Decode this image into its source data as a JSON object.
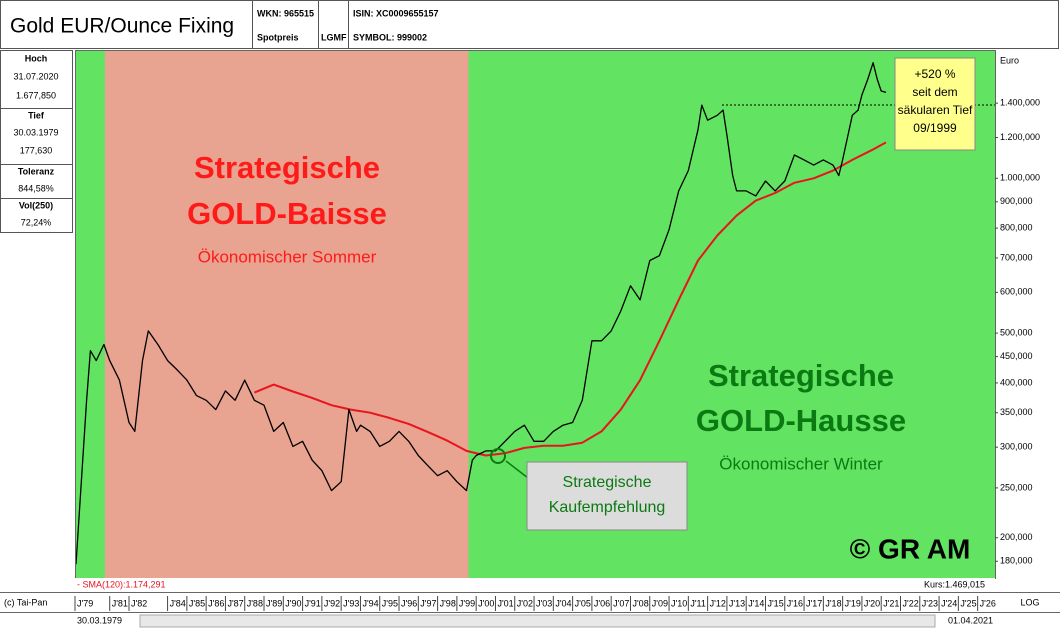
{
  "header": {
    "title": "Gold EUR/Ounce Fixing",
    "wkn": "WKN: 965515",
    "spot": "Spotpreis",
    "lgmf": "LGMF",
    "isin": "ISIN: XC0009655157",
    "symbol": "SYMBOL: 999002"
  },
  "info": [
    {
      "label": "Hoch",
      "lines": [
        "31.07.2020",
        "1.677,850"
      ]
    },
    {
      "label": "Tief",
      "lines": [
        "30.03.1979",
        "177,630"
      ]
    },
    {
      "label": "Toleranz",
      "lines": [
        "844,58%"
      ]
    },
    {
      "label": "Vol(250)",
      "lines": [
        "72,24%"
      ]
    }
  ],
  "footer": {
    "copyright": "(c) Tai-Pan",
    "scale": "LOG",
    "start": "30.03.1979",
    "end": "01.04.2021"
  },
  "chart_data": {
    "type": "line",
    "y_label": "Euro",
    "log_scale": true,
    "background_color": "#62e462",
    "shaded_region": {
      "x": [
        1980.75,
        1999.6
      ],
      "color": "#e8a391"
    },
    "reference_line": 1388,
    "xlim": [
      1979.2,
      2026.9
    ],
    "ylim": [
      167,
      1776
    ],
    "xticks": [
      {
        "value": 1979,
        "label": "J'79"
      },
      {
        "value": 1981,
        "label": "J'81"
      },
      {
        "value": 1982,
        "label": "J'82"
      },
      {
        "value": 1984,
        "label": "J'84"
      },
      {
        "value": 1985,
        "label": "J'85"
      },
      {
        "value": 1986,
        "label": "J'86"
      },
      {
        "value": 1987,
        "label": "J'87"
      },
      {
        "value": 1988,
        "label": "J'88"
      },
      {
        "value": 1989,
        "label": "J'89"
      },
      {
        "value": 1990,
        "label": "J'90"
      },
      {
        "value": 1991,
        "label": "J'91"
      },
      {
        "value": 1992,
        "label": "J'92"
      },
      {
        "value": 1993,
        "label": "J'93"
      },
      {
        "value": 1994,
        "label": "J'94"
      },
      {
        "value": 1995,
        "label": "J'95"
      },
      {
        "value": 1996,
        "label": "J'96"
      },
      {
        "value": 1997,
        "label": "J'97"
      },
      {
        "value": 1998,
        "label": "J'98"
      },
      {
        "value": 1999,
        "label": "J'99"
      },
      {
        "value": 2000,
        "label": "J'00"
      },
      {
        "value": 2001,
        "label": "J'01"
      },
      {
        "value": 2002,
        "label": "J'02"
      },
      {
        "value": 2003,
        "label": "J'03"
      },
      {
        "value": 2004,
        "label": "J'04"
      },
      {
        "value": 2005,
        "label": "J'05"
      },
      {
        "value": 2006,
        "label": "J'06"
      },
      {
        "value": 2007,
        "label": "J'07"
      },
      {
        "value": 2008,
        "label": "J'08"
      },
      {
        "value": 2009,
        "label": "J'09"
      },
      {
        "value": 2010,
        "label": "J'10"
      },
      {
        "value": 2011,
        "label": "J'11"
      },
      {
        "value": 2012,
        "label": "J'12"
      },
      {
        "value": 2013,
        "label": "J'13"
      },
      {
        "value": 2014,
        "label": "J'14"
      },
      {
        "value": 2015,
        "label": "J'15"
      },
      {
        "value": 2016,
        "label": "J'16"
      },
      {
        "value": 2017,
        "label": "J'17"
      },
      {
        "value": 2018,
        "label": "J'18"
      },
      {
        "value": 2019,
        "label": "J'19"
      },
      {
        "value": 2020,
        "label": "J'20"
      },
      {
        "value": 2021,
        "label": "J'21"
      },
      {
        "value": 2022,
        "label": "J'22"
      },
      {
        "value": 2023,
        "label": "J'23"
      },
      {
        "value": 2024,
        "label": "J'24"
      },
      {
        "value": 2025,
        "label": "J'25"
      },
      {
        "value": 2026,
        "label": "J'26"
      }
    ],
    "yticks": [
      {
        "value": 1400,
        "label": "1.400,000"
      },
      {
        "value": 1200,
        "label": "1.200,000"
      },
      {
        "value": 1000,
        "label": "1.000,000"
      },
      {
        "value": 900,
        "label": "900,000"
      },
      {
        "value": 800,
        "label": "800,000"
      },
      {
        "value": 700,
        "label": "700,000"
      },
      {
        "value": 600,
        "label": "600,000"
      },
      {
        "value": 500,
        "label": "500,000"
      },
      {
        "value": 450,
        "label": "450,000"
      },
      {
        "value": 400,
        "label": "400,000"
      },
      {
        "value": 350,
        "label": "350,000"
      },
      {
        "value": 300,
        "label": "300,000"
      },
      {
        "value": 250,
        "label": "250,000"
      },
      {
        "value": 200,
        "label": "200,000"
      },
      {
        "value": 180,
        "label": "180,000"
      }
    ],
    "series": [
      {
        "color": "#000000",
        "x": [
          1979.25,
          1979.8,
          1980.0,
          1980.3,
          1980.7,
          1981.0,
          1981.5,
          1982.0,
          1982.3,
          1982.7,
          1983.0,
          1983.5,
          1984.0,
          1984.5,
          1985.0,
          1985.5,
          1986.0,
          1986.5,
          1987.0,
          1987.5,
          1988.0,
          1988.5,
          1989.0,
          1989.5,
          1990.0,
          1990.5,
          1991.0,
          1991.5,
          1992.0,
          1992.5,
          1993.0,
          1993.4,
          1993.8,
          1994.0,
          1994.5,
          1995.0,
          1995.5,
          1996.0,
          1996.5,
          1997.0,
          1997.5,
          1998.0,
          1998.5,
          1999.0,
          1999.5,
          1999.8,
          2000.0,
          2000.5,
          2001.0,
          2001.5,
          2002.0,
          2002.5,
          2003.0,
          2003.5,
          2004.0,
          2004.5,
          2005.0,
          2005.5,
          2006.0,
          2006.5,
          2007.0,
          2007.5,
          2008.0,
          2008.5,
          2009.0,
          2009.5,
          2010.0,
          2010.5,
          2011.0,
          2011.5,
          2011.7,
          2012.0,
          2012.5,
          2012.8,
          2013.0,
          2013.3,
          2013.5,
          2014.0,
          2014.5,
          2015.0,
          2015.5,
          2016.0,
          2016.5,
          2017.0,
          2017.5,
          2018.0,
          2018.5,
          2018.8,
          2019.0,
          2019.5,
          2019.8,
          2020.0,
          2020.3,
          2020.58,
          2020.8,
          2021.0,
          2021.25
        ],
        "values": [
          177.63,
          370,
          462,
          442,
          475,
          442,
          405,
          335,
          322,
          442,
          505,
          475,
          442,
          424,
          405,
          378,
          370,
          355,
          386,
          370,
          405,
          370,
          362,
          322,
          335,
          301,
          308,
          283,
          270,
          247,
          257,
          355,
          322,
          331,
          322,
          301,
          308,
          322,
          308,
          289,
          276,
          264,
          270,
          257,
          247,
          283,
          289,
          295,
          295,
          308,
          322,
          331,
          308,
          308,
          322,
          331,
          335,
          370,
          483,
          483,
          505,
          552,
          618,
          580,
          692,
          707,
          794,
          945,
          1035,
          1243,
          1388,
          1297,
          1326,
          1357,
          1214,
          1012,
          945,
          945,
          924,
          988,
          945,
          988,
          1110,
          1086,
          1061,
          1086,
          1061,
          1012,
          1086,
          1326,
          1357,
          1452,
          1556,
          1677.85,
          1556,
          1478,
          1469.015
        ]
      },
      {
        "color": "#e8141e",
        "x": [
          1988.5,
          1989.5,
          1990.5,
          1991.5,
          1992.5,
          1993.5,
          1994.5,
          1995.5,
          1996.5,
          1997.5,
          1998.5,
          1999.5,
          2000.5,
          2001.5,
          2002.5,
          2003.5,
          2004.5,
          2005.5,
          2006.5,
          2007.5,
          2008.5,
          2009.5,
          2010.5,
          2011.5,
          2012.5,
          2013.5,
          2014.5,
          2015.5,
          2016.5,
          2017.5,
          2018.5,
          2019.5,
          2020.5,
          2021.25
        ],
        "values": [
          383,
          397,
          385,
          374,
          362,
          355,
          350,
          342,
          333,
          321,
          309,
          295,
          289,
          292,
          299,
          302,
          302,
          306,
          322,
          355,
          405,
          483,
          580,
          692,
          774,
          846,
          905,
          936,
          980,
          1000,
          1035,
          1086,
          1134,
          1174.291
        ]
      }
    ],
    "sma_label": "- SMA(120):1.174,291",
    "price_label": "Kurs:1.469,015",
    "annotations": {
      "baisse_title": [
        "Strategische",
        "GOLD-Baisse"
      ],
      "baisse_sub": "Ökonomischer Sommer",
      "hausse_title": [
        "Strategische",
        "GOLD-Hausse"
      ],
      "hausse_sub": "Ökonomischer Winter",
      "buy_box": [
        "Strategische",
        "Kaufempfehlung"
      ],
      "gain_box": [
        "+520 %",
        "seit dem",
        "säkularen Tief",
        "09/1999"
      ],
      "copyright": "© GR AM"
    }
  }
}
